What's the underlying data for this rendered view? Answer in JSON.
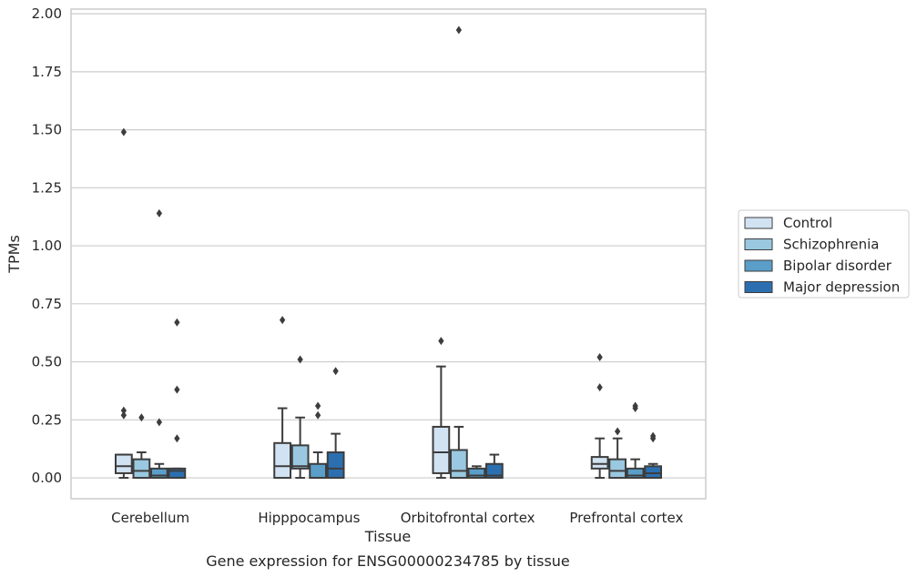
{
  "chart_data": {
    "type": "box",
    "title": "Gene expression for ENSG00000234785 by tissue",
    "xlabel": "Tissue",
    "ylabel": "TPMs",
    "ylim": [
      -0.09,
      2.02
    ],
    "yticks": [
      "0.00",
      "0.25",
      "0.50",
      "0.75",
      "1.00",
      "1.25",
      "1.50",
      "1.75",
      "2.00"
    ],
    "grid": true,
    "legend_position": "right",
    "categories": [
      "Cerebellum",
      "Hipppocampus",
      "Orbitofrontal cortex",
      "Prefrontal cortex"
    ],
    "series": [
      {
        "name": "Control",
        "color": "#d1e2f2",
        "boxes": [
          {
            "whislo": 0.0,
            "q1": 0.02,
            "med": 0.05,
            "q3": 0.1,
            "whishi": 0.1,
            "fliers": [
              0.27,
              0.29,
              1.49
            ]
          },
          {
            "whislo": 0.0,
            "q1": 0.0,
            "med": 0.05,
            "q3": 0.15,
            "whishi": 0.3,
            "fliers": [
              0.68
            ]
          },
          {
            "whislo": 0.0,
            "q1": 0.02,
            "med": 0.11,
            "q3": 0.22,
            "whishi": 0.48,
            "fliers": [
              0.59
            ]
          },
          {
            "whislo": 0.0,
            "q1": 0.04,
            "med": 0.06,
            "q3": 0.09,
            "whishi": 0.17,
            "fliers": [
              0.39,
              0.52
            ]
          }
        ]
      },
      {
        "name": "Schizophrenia",
        "color": "#9ac8e0",
        "boxes": [
          {
            "whislo": 0.0,
            "q1": 0.0,
            "med": 0.03,
            "q3": 0.08,
            "whishi": 0.11,
            "fliers": [
              0.26
            ]
          },
          {
            "whislo": 0.0,
            "q1": 0.04,
            "med": 0.05,
            "q3": 0.14,
            "whishi": 0.26,
            "fliers": [
              0.51
            ]
          },
          {
            "whislo": 0.0,
            "q1": 0.0,
            "med": 0.03,
            "q3": 0.12,
            "whishi": 0.22,
            "fliers": [
              1.93
            ]
          },
          {
            "whislo": 0.0,
            "q1": 0.0,
            "med": 0.03,
            "q3": 0.08,
            "whishi": 0.17,
            "fliers": [
              0.2
            ]
          }
        ]
      },
      {
        "name": "Bipolar disorder",
        "color": "#5a9ec9",
        "boxes": [
          {
            "whislo": 0.0,
            "q1": 0.0,
            "med": 0.01,
            "q3": 0.04,
            "whishi": 0.06,
            "fliers": [
              0.24,
              1.14
            ]
          },
          {
            "whislo": 0.0,
            "q1": 0.0,
            "med": 0.0,
            "q3": 0.06,
            "whishi": 0.11,
            "fliers": [
              0.27,
              0.31
            ]
          },
          {
            "whislo": 0.0,
            "q1": 0.0,
            "med": 0.01,
            "q3": 0.04,
            "whishi": 0.05,
            "fliers": []
          },
          {
            "whislo": 0.0,
            "q1": 0.0,
            "med": 0.01,
            "q3": 0.04,
            "whishi": 0.08,
            "fliers": [
              0.3,
              0.31
            ]
          }
        ]
      },
      {
        "name": "Major depression",
        "color": "#2c6fb0",
        "boxes": [
          {
            "whislo": 0.0,
            "q1": 0.0,
            "med": 0.03,
            "q3": 0.04,
            "whishi": 0.04,
            "fliers": [
              0.17,
              0.38,
              0.67
            ]
          },
          {
            "whislo": 0.0,
            "q1": 0.0,
            "med": 0.04,
            "q3": 0.11,
            "whishi": 0.19,
            "fliers": [
              0.46
            ]
          },
          {
            "whislo": 0.0,
            "q1": 0.0,
            "med": 0.01,
            "q3": 0.06,
            "whishi": 0.1,
            "fliers": []
          },
          {
            "whislo": 0.0,
            "q1": 0.0,
            "med": 0.02,
            "q3": 0.05,
            "whishi": 0.06,
            "fliers": [
              0.17,
              0.18
            ]
          }
        ]
      }
    ]
  }
}
